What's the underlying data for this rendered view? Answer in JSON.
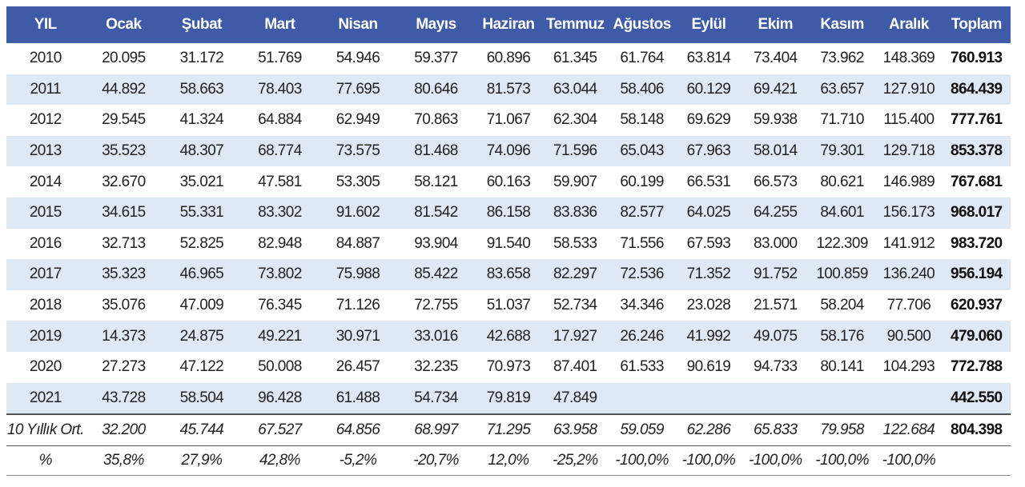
{
  "table": {
    "headers": [
      "YIL",
      "Ocak",
      "Şubat",
      "Mart",
      "Nisan",
      "Mayıs",
      "Haziran",
      "Temmuz",
      "Ağustos",
      "Eylül",
      "Ekim",
      "Kasım",
      "Aralık",
      "Toplam"
    ],
    "rows": [
      [
        "2010",
        "20.095",
        "31.172",
        "51.769",
        "54.946",
        "59.377",
        "60.896",
        "61.345",
        "61.764",
        "63.814",
        "73.404",
        "73.962",
        "148.369",
        "760.913"
      ],
      [
        "2011",
        "44.892",
        "58.663",
        "78.403",
        "77.695",
        "80.646",
        "81.573",
        "63.044",
        "58.406",
        "60.129",
        "69.421",
        "63.657",
        "127.910",
        "864.439"
      ],
      [
        "2012",
        "29.545",
        "41.324",
        "64.884",
        "62.949",
        "70.863",
        "71.067",
        "62.304",
        "58.148",
        "69.629",
        "59.938",
        "71.710",
        "115.400",
        "777.761"
      ],
      [
        "2013",
        "35.523",
        "48.307",
        "68.774",
        "73.575",
        "81.468",
        "74.096",
        "71.596",
        "65.043",
        "67.963",
        "58.014",
        "79.301",
        "129.718",
        "853.378"
      ],
      [
        "2014",
        "32.670",
        "35.021",
        "47.581",
        "53.305",
        "58.121",
        "60.163",
        "59.907",
        "60.199",
        "66.531",
        "66.573",
        "80.621",
        "146.989",
        "767.681"
      ],
      [
        "2015",
        "34.615",
        "55.331",
        "83.302",
        "91.602",
        "81.542",
        "86.158",
        "83.836",
        "82.577",
        "64.025",
        "64.255",
        "84.601",
        "156.173",
        "968.017"
      ],
      [
        "2016",
        "32.713",
        "52.825",
        "82.948",
        "84.887",
        "93.904",
        "91.540",
        "58.533",
        "71.556",
        "67.593",
        "83.000",
        "122.309",
        "141.912",
        "983.720"
      ],
      [
        "2017",
        "35.323",
        "46.965",
        "73.802",
        "75.988",
        "85.422",
        "83.658",
        "82.297",
        "72.536",
        "71.352",
        "91.752",
        "100.859",
        "136.240",
        "956.194"
      ],
      [
        "2018",
        "35.076",
        "47.009",
        "76.345",
        "71.126",
        "72.755",
        "51.037",
        "52.734",
        "34.346",
        "23.028",
        "21.571",
        "58.204",
        "77.706",
        "620.937"
      ],
      [
        "2019",
        "14.373",
        "24.875",
        "49.221",
        "30.971",
        "33.016",
        "42.688",
        "17.927",
        "26.246",
        "41.992",
        "49.075",
        "58.176",
        "90.500",
        "479.060"
      ],
      [
        "2020",
        "27.273",
        "47.122",
        "50.008",
        "26.457",
        "32.235",
        "70.973",
        "87.401",
        "61.533",
        "90.619",
        "94.733",
        "80.141",
        "104.293",
        "772.788"
      ],
      [
        "2021",
        "43.728",
        "58.504",
        "96.428",
        "61.488",
        "54.734",
        "79.819",
        "47.849",
        "",
        "",
        "",
        "",
        "",
        "442.550"
      ]
    ],
    "average_row": [
      "10 Yıllık Ort.",
      "32.200",
      "45.744",
      "67.527",
      "64.856",
      "68.997",
      "71.295",
      "63.958",
      "59.059",
      "62.286",
      "65.833",
      "79.958",
      "122.684",
      "804.398"
    ],
    "percent_row": [
      "%",
      "35,8%",
      "27,9%",
      "42,8%",
      "-5,2%",
      "-20,7%",
      "12,0%",
      "-25,2%",
      "-100,0%",
      "-100,0%",
      "-100,0%",
      "-100,0%",
      "-100,0%",
      ""
    ]
  }
}
